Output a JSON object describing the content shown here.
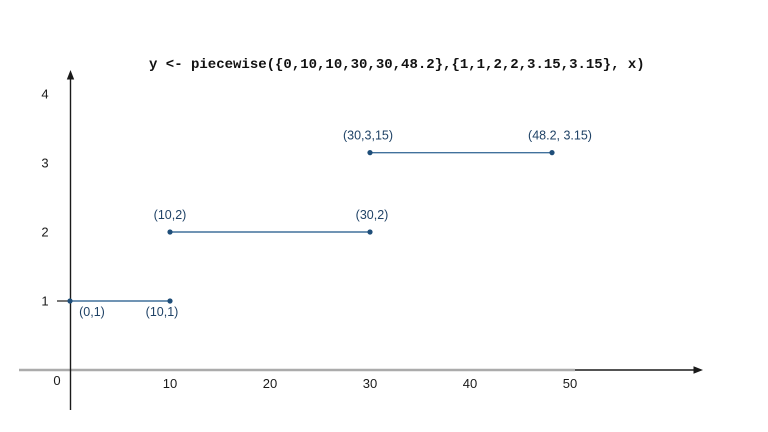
{
  "colors": {
    "segment_line": "#41719C",
    "point_dot": "#1F4E79",
    "point_label": "#1F4266",
    "axis_black": "#1a1a1a",
    "axis_gray": "#ABABAB",
    "tick_label": "#1a1a1a"
  },
  "chart_data": {
    "type": "line",
    "title": "y <- piecewise({0,10,10,30,30,48.2},{1,1,2,2,3.15,3.15}, x)",
    "xlabel": "",
    "ylabel": "",
    "xlim": [
      0,
      63
    ],
    "ylim": [
      0,
      4.3
    ],
    "grid": false,
    "legend": "none",
    "x_ticks": [
      10,
      20,
      30,
      40,
      50
    ],
    "y_ticks": [
      1,
      2,
      3,
      4
    ],
    "origin_tick_label": "0",
    "piecewise_x_breaks": [
      0,
      10,
      10,
      30,
      30,
      48.2
    ],
    "piecewise_y_values": [
      1,
      1,
      2,
      2,
      3.15,
      3.15
    ],
    "segments": [
      {
        "points": [
          [
            0,
            1
          ],
          [
            10,
            1
          ]
        ],
        "point_labels": [
          {
            "text": "(0,1)",
            "side": "below",
            "dx": 22
          },
          {
            "text": "(10,1)",
            "side": "below",
            "dx": -8
          }
        ]
      },
      {
        "points": [
          [
            10,
            2
          ],
          [
            30,
            2
          ]
        ],
        "point_labels": [
          {
            "text": "(10,2)",
            "side": "above",
            "dx": 0
          },
          {
            "text": "(30,2)",
            "side": "above",
            "dx": 2
          }
        ]
      },
      {
        "points": [
          [
            30,
            3.15
          ],
          [
            48.2,
            3.15
          ]
        ],
        "point_labels": [
          {
            "text": "(30,3,15)",
            "side": "above",
            "dx": -2
          },
          {
            "text": "(48.2, 3.15)",
            "side": "above",
            "dx": 8
          }
        ]
      }
    ]
  }
}
